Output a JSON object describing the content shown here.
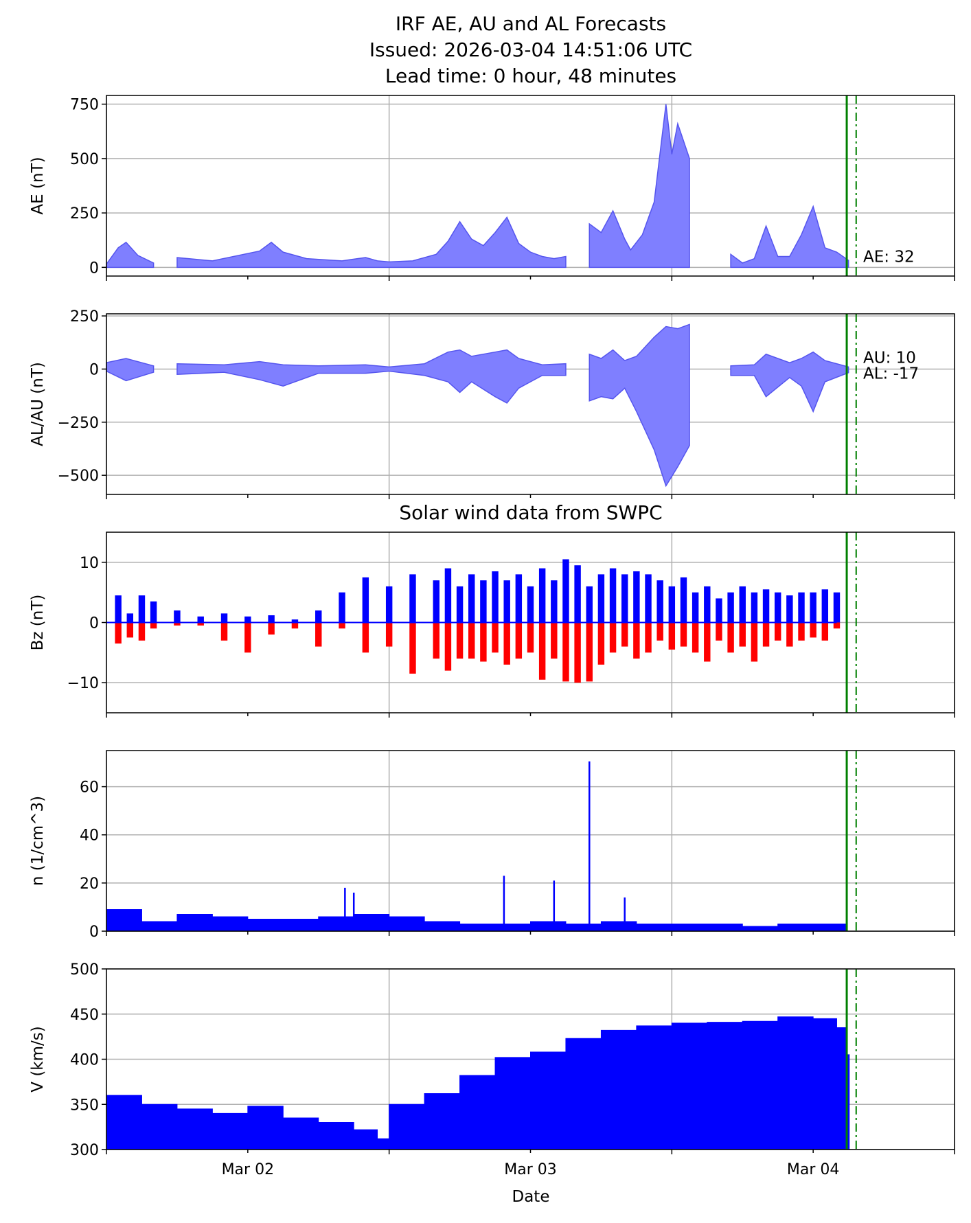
{
  "chart_data": [
    {
      "type": "area",
      "title": "IRF AE, AU and AL Forecasts",
      "subtitle_lines": [
        "Issued: 2026-03-04 14:51:06 UTC",
        "Lead time: 0 hour, 48 minutes"
      ],
      "xlabel": "",
      "ylabel": "AE (nT)",
      "xlim": [
        "2026-03-01 12:00",
        "2026-03-04 12:00"
      ],
      "ylim": [
        -40,
        790
      ],
      "yticks": [
        0,
        250,
        500,
        750
      ],
      "grid": true,
      "fill_color": "#7f7fff",
      "line_color": "#5555ee",
      "annotation": "AE: 32",
      "marker_solid_time": "2026-03-04 02:51",
      "marker_dashdot_time": "2026-03-04 03:39",
      "marker_color": "#008000",
      "segments": [
        {
          "x": [
            "2026-03-01 12:00",
            "2026-03-01 13:00",
            "2026-03-01 13:40",
            "2026-03-01 14:40",
            "2026-03-01 16:00"
          ],
          "y": [
            15,
            90,
            115,
            55,
            20
          ]
        },
        {
          "x": [
            "2026-03-01 18:00",
            "2026-03-01 21:00",
            "2026-03-02 01:00",
            "2026-03-02 02:00",
            "2026-03-02 03:00",
            "2026-03-02 05:00",
            "2026-03-02 08:00",
            "2026-03-02 10:00",
            "2026-03-02 11:00",
            "2026-03-02 12:00",
            "2026-03-02 14:00",
            "2026-03-02 16:00",
            "2026-03-02 17:00",
            "2026-03-02 18:00",
            "2026-03-02 19:00",
            "2026-03-02 20:00",
            "2026-03-02 21:00",
            "2026-03-02 22:00",
            "2026-03-02 23:00",
            "2026-03-03 00:00",
            "2026-03-03 01:00",
            "2026-03-03 02:00",
            "2026-03-03 03:00"
          ],
          "y": [
            45,
            30,
            75,
            115,
            70,
            40,
            30,
            45,
            30,
            25,
            30,
            60,
            120,
            210,
            130,
            100,
            160,
            230,
            110,
            70,
            50,
            40,
            50
          ]
        },
        {
          "x": [
            "2026-03-03 05:00",
            "2026-03-03 06:00",
            "2026-03-03 07:00",
            "2026-03-03 08:00",
            "2026-03-03 08:30",
            "2026-03-03 09:30",
            "2026-03-03 10:30",
            "2026-03-03 11:30",
            "2026-03-03 12:00",
            "2026-03-03 12:30",
            "2026-03-03 13:30"
          ],
          "y": [
            200,
            160,
            260,
            130,
            80,
            150,
            300,
            750,
            520,
            660,
            500
          ]
        },
        {
          "x": [
            "2026-03-03 17:00",
            "2026-03-03 18:00",
            "2026-03-03 19:00",
            "2026-03-03 20:00",
            "2026-03-03 21:00",
            "2026-03-03 22:00",
            "2026-03-03 23:00",
            "2026-03-04 00:00",
            "2026-03-04 01:00",
            "2026-03-04 02:00",
            "2026-03-04 03:00"
          ],
          "y": [
            60,
            20,
            40,
            190,
            50,
            50,
            150,
            280,
            90,
            70,
            32
          ]
        }
      ]
    },
    {
      "type": "area",
      "xlabel": "",
      "ylabel": "AL/AU (nT)",
      "xlim": [
        "2026-03-01 12:00",
        "2026-03-04 12:00"
      ],
      "ylim": [
        -590,
        260
      ],
      "yticks": [
        -500,
        -250,
        0,
        250
      ],
      "yticklabels": [
        "−500",
        "−250",
        "0",
        "250"
      ],
      "grid": true,
      "fill_color": "#7f7fff",
      "line_color": "#5555ee",
      "annotations": [
        "AU: 10",
        "AL: -17"
      ],
      "marker_solid_time": "2026-03-04 02:51",
      "marker_dashdot_time": "2026-03-04 03:39",
      "marker_color": "#008000",
      "segments": [
        {
          "x": [
            "2026-03-01 12:00",
            "2026-03-01 13:40",
            "2026-03-01 16:00"
          ],
          "au": [
            30,
            50,
            15
          ],
          "al": [
            -10,
            -55,
            -15
          ]
        },
        {
          "x": [
            "2026-03-01 18:00",
            "2026-03-01 22:00",
            "2026-03-02 01:00",
            "2026-03-02 03:00",
            "2026-03-02 06:00",
            "2026-03-02 10:00",
            "2026-03-02 12:00",
            "2026-03-02 15:00",
            "2026-03-02 17:00",
            "2026-03-02 18:00",
            "2026-03-02 19:00",
            "2026-03-02 21:00",
            "2026-03-02 22:00",
            "2026-03-02 23:00",
            "2026-03-03 01:00",
            "2026-03-03 03:00"
          ],
          "au": [
            25,
            20,
            35,
            20,
            15,
            20,
            10,
            25,
            80,
            90,
            60,
            80,
            90,
            50,
            20,
            25
          ],
          "al": [
            -25,
            -15,
            -50,
            -80,
            -20,
            -20,
            -10,
            -30,
            -60,
            -110,
            -60,
            -130,
            -160,
            -90,
            -30,
            -30
          ]
        },
        {
          "x": [
            "2026-03-03 05:00",
            "2026-03-03 06:00",
            "2026-03-03 07:00",
            "2026-03-03 08:00",
            "2026-03-03 09:00",
            "2026-03-03 10:30",
            "2026-03-03 11:30",
            "2026-03-03 12:30",
            "2026-03-03 13:30"
          ],
          "au": [
            70,
            50,
            90,
            40,
            60,
            150,
            200,
            190,
            210
          ],
          "al": [
            -150,
            -130,
            -140,
            -90,
            -200,
            -380,
            -550,
            -460,
            -360
          ]
        },
        {
          "x": [
            "2026-03-03 17:00",
            "2026-03-03 19:00",
            "2026-03-03 20:00",
            "2026-03-03 22:00",
            "2026-03-03 23:00",
            "2026-03-04 00:00",
            "2026-03-04 01:00",
            "2026-03-04 03:00"
          ],
          "au": [
            15,
            20,
            70,
            30,
            50,
            80,
            40,
            10
          ],
          "al": [
            -30,
            -30,
            -130,
            -40,
            -80,
            -200,
            -60,
            -17
          ]
        }
      ]
    },
    {
      "type": "bar",
      "title": "Solar wind data from SWPC",
      "xlabel": "",
      "ylabel": "Bz (nT)",
      "xlim": [
        "2026-03-01 12:00",
        "2026-03-04 12:00"
      ],
      "ylim": [
        -15,
        15
      ],
      "yticks": [
        -10,
        0,
        10
      ],
      "yticklabels": [
        "−10",
        "0",
        "10"
      ],
      "grid": true,
      "positive_color": "#0000ff",
      "negative_color": "#ff0000",
      "marker_solid_time": "2026-03-04 02:51",
      "marker_dashdot_time": "2026-03-04 03:39",
      "marker_color": "#008000",
      "x": [
        "2026-03-01 13:00",
        "2026-03-01 14:00",
        "2026-03-01 15:00",
        "2026-03-01 16:00",
        "2026-03-01 18:00",
        "2026-03-01 20:00",
        "2026-03-01 22:00",
        "2026-03-02 00:00",
        "2026-03-02 02:00",
        "2026-03-02 04:00",
        "2026-03-02 06:00",
        "2026-03-02 08:00",
        "2026-03-02 10:00",
        "2026-03-02 12:00",
        "2026-03-02 14:00",
        "2026-03-02 16:00",
        "2026-03-02 17:00",
        "2026-03-02 18:00",
        "2026-03-02 19:00",
        "2026-03-02 20:00",
        "2026-03-02 21:00",
        "2026-03-02 22:00",
        "2026-03-02 23:00",
        "2026-03-03 00:00",
        "2026-03-03 01:00",
        "2026-03-03 02:00",
        "2026-03-03 03:00",
        "2026-03-03 04:00",
        "2026-03-03 05:00",
        "2026-03-03 06:00",
        "2026-03-03 07:00",
        "2026-03-03 08:00",
        "2026-03-03 09:00",
        "2026-03-03 10:00",
        "2026-03-03 11:00",
        "2026-03-03 12:00",
        "2026-03-03 13:00",
        "2026-03-03 14:00",
        "2026-03-03 15:00",
        "2026-03-03 16:00",
        "2026-03-03 17:00",
        "2026-03-03 18:00",
        "2026-03-03 19:00",
        "2026-03-03 20:00",
        "2026-03-03 21:00",
        "2026-03-03 22:00",
        "2026-03-03 23:00",
        "2026-03-04 00:00",
        "2026-03-04 01:00",
        "2026-03-04 02:00"
      ],
      "values_pos": [
        4.5,
        1.5,
        4.5,
        3.5,
        2.0,
        1.0,
        1.5,
        1.0,
        1.2,
        0.5,
        2.0,
        5.0,
        7.5,
        6.0,
        8.0,
        7.0,
        9.0,
        6.0,
        8.0,
        7.0,
        8.5,
        7.0,
        8.0,
        6.0,
        9.0,
        7.0,
        10.5,
        9.5,
        6.0,
        8.0,
        9.0,
        8.0,
        8.5,
        8.0,
        7.0,
        6.0,
        7.5,
        5.0,
        6.0,
        4.0,
        5.0,
        6.0,
        5.0,
        5.5,
        5.0,
        4.5,
        5.0,
        5.0,
        5.5,
        5.0
      ],
      "values_neg": [
        -3.5,
        -2.5,
        -3.0,
        -1.0,
        -0.5,
        -0.5,
        -3.0,
        -5.0,
        -2.0,
        -1.0,
        -4.0,
        -1.0,
        -5.0,
        -4.0,
        -8.5,
        -6.0,
        -8.0,
        -6.0,
        -6.0,
        -6.5,
        -5.0,
        -7.0,
        -6.0,
        -5.0,
        -9.5,
        -6.0,
        -9.8,
        -10.0,
        -9.8,
        -7.0,
        -5.0,
        -4.0,
        -6.0,
        -5.0,
        -3.0,
        -4.5,
        -4.0,
        -5.0,
        -6.5,
        -3.0,
        -5.0,
        -4.0,
        -6.5,
        -4.0,
        -3.0,
        -4.0,
        -3.0,
        -2.5,
        -3.0,
        -1.0
      ]
    },
    {
      "type": "bar",
      "xlabel": "",
      "ylabel": "n (1/cm^3)",
      "xlim": [
        "2026-03-01 12:00",
        "2026-03-04 12:00"
      ],
      "ylim": [
        0,
        75
      ],
      "yticks": [
        0,
        20,
        40,
        60
      ],
      "grid": true,
      "color": "#0000ff",
      "marker_solid_time": "2026-03-04 02:51",
      "marker_dashdot_time": "2026-03-04 03:39",
      "marker_color": "#008000",
      "x": [
        "2026-03-01 12:00",
        "2026-03-01 15:00",
        "2026-03-01 18:00",
        "2026-03-01 21:00",
        "2026-03-02 00:00",
        "2026-03-02 03:00",
        "2026-03-02 06:00",
        "2026-03-02 09:00",
        "2026-03-02 12:00",
        "2026-03-02 15:00",
        "2026-03-02 18:00",
        "2026-03-02 21:00",
        "2026-03-03 00:00",
        "2026-03-03 03:00",
        "2026-03-03 06:00",
        "2026-03-03 09:00",
        "2026-03-03 12:00",
        "2026-03-03 15:00",
        "2026-03-03 18:00",
        "2026-03-03 21:00",
        "2026-03-04 00:00",
        "2026-03-04 02:40"
      ],
      "values": [
        9,
        4,
        7,
        6,
        5,
        5,
        6,
        7,
        6,
        4,
        3,
        3,
        4,
        3,
        4,
        3,
        3,
        3,
        2,
        3,
        3,
        3
      ],
      "spikes_x": [
        "2026-03-02 08:15",
        "2026-03-02 09:00",
        "2026-03-02 21:45",
        "2026-03-03 02:00",
        "2026-03-03 05:00",
        "2026-03-03 08:00"
      ],
      "spikes_y": [
        18,
        16,
        23,
        21,
        70.5,
        14
      ]
    },
    {
      "type": "bar",
      "xlabel": "Date",
      "ylabel": "V (km/s)",
      "xlim": [
        "2026-03-01 12:00",
        "2026-03-04 12:00"
      ],
      "ylim": [
        300,
        500
      ],
      "yticks": [
        300,
        350,
        400,
        450,
        500
      ],
      "xticks": [
        "2026-03-02 00:00",
        "2026-03-03 00:00",
        "2026-03-04 00:00"
      ],
      "xticklabels": [
        "Mar 02",
        "Mar 03",
        "Mar 04"
      ],
      "grid": true,
      "color": "#0000ff",
      "marker_solid_time": "2026-03-04 02:51",
      "marker_dashdot_time": "2026-03-04 03:39",
      "marker_color": "#008000",
      "x": [
        "2026-03-01 12:00",
        "2026-03-01 15:00",
        "2026-03-01 18:00",
        "2026-03-01 21:00",
        "2026-03-02 00:00",
        "2026-03-02 03:00",
        "2026-03-02 06:00",
        "2026-03-02 09:00",
        "2026-03-02 11:00",
        "2026-03-02 12:00",
        "2026-03-02 15:00",
        "2026-03-02 18:00",
        "2026-03-02 21:00",
        "2026-03-03 00:00",
        "2026-03-03 03:00",
        "2026-03-03 06:00",
        "2026-03-03 09:00",
        "2026-03-03 12:00",
        "2026-03-03 15:00",
        "2026-03-03 18:00",
        "2026-03-03 21:00",
        "2026-03-04 00:00",
        "2026-03-04 02:00",
        "2026-03-04 02:50"
      ],
      "values": [
        360,
        350,
        345,
        340,
        348,
        335,
        330,
        322,
        312,
        350,
        362,
        382,
        402,
        408,
        423,
        432,
        437,
        440,
        441,
        442,
        447,
        445,
        435,
        405
      ]
    }
  ]
}
